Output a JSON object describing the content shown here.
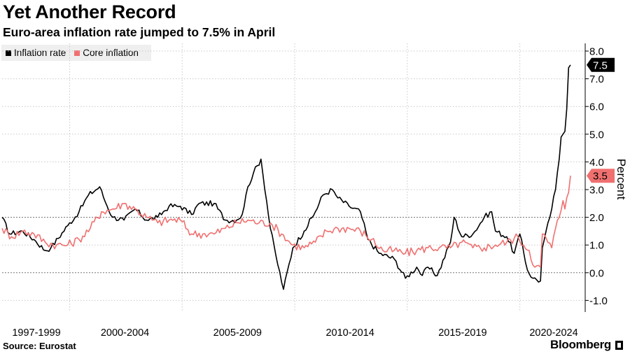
{
  "title": "Yet Another Record",
  "subtitle": "Euro-area inflation rate jumped to 7.5% in April",
  "source": "Source: Eurostat",
  "brand": "Bloomberg",
  "colors": {
    "inflation": "#000000",
    "core": "#f07070",
    "grid": "#c8c8c8",
    "legend_bg": "#efefef"
  },
  "chart_data": {
    "type": "line",
    "x_start": "1997-01",
    "x_step": "month",
    "xlim": [
      "1997-01",
      "2022-04"
    ],
    "x_tick_labels": [
      "1997-1999",
      "2000-2004",
      "2005-2009",
      "2010-2014",
      "2015-2019",
      "2020-2024"
    ],
    "ylabel": "Percent",
    "ylim": [
      -1.4,
      8.2
    ],
    "y_ticks": [
      -1.0,
      0.0,
      1.0,
      2.0,
      3.0,
      4.0,
      5.0,
      6.0,
      7.0,
      8.0
    ],
    "y_tick_labels": [
      "-1.0",
      "0.0",
      "1.0",
      "2.0",
      "3.0",
      "4.0",
      "5.0",
      "6.0",
      "7.0",
      "8.0"
    ],
    "grid": true,
    "legend": "top-left",
    "last_value_labels": [
      "7.5",
      "3.5"
    ],
    "series": [
      {
        "name": "Inflation rate",
        "key": "inflation",
        "anchors": [
          [
            "1997-01",
            2.0
          ],
          [
            "1997-05",
            1.4
          ],
          [
            "1997-12",
            1.5
          ],
          [
            "1998-06",
            1.2
          ],
          [
            "1998-12",
            0.8
          ],
          [
            "1999-03",
            0.9
          ],
          [
            "1999-12",
            1.7
          ],
          [
            "2000-06",
            2.2
          ],
          [
            "2000-11",
            2.8
          ],
          [
            "2001-05",
            3.1
          ],
          [
            "2001-09",
            2.4
          ],
          [
            "2001-12",
            2.0
          ],
          [
            "2002-06",
            1.9
          ],
          [
            "2002-12",
            2.3
          ],
          [
            "2003-06",
            1.9
          ],
          [
            "2003-12",
            2.0
          ],
          [
            "2004-06",
            2.4
          ],
          [
            "2004-12",
            2.4
          ],
          [
            "2005-06",
            2.1
          ],
          [
            "2005-10",
            2.5
          ],
          [
            "2006-06",
            2.5
          ],
          [
            "2006-12",
            1.9
          ],
          [
            "2007-06",
            1.9
          ],
          [
            "2007-09",
            2.1
          ],
          [
            "2007-12",
            3.1
          ],
          [
            "2008-03",
            3.6
          ],
          [
            "2008-07",
            4.1
          ],
          [
            "2008-12",
            1.6
          ],
          [
            "2009-03",
            0.6
          ],
          [
            "2009-07",
            -0.6
          ],
          [
            "2009-12",
            0.9
          ],
          [
            "2010-06",
            1.5
          ],
          [
            "2010-12",
            2.2
          ],
          [
            "2011-04",
            2.8
          ],
          [
            "2011-09",
            3.0
          ],
          [
            "2011-12",
            2.7
          ],
          [
            "2012-06",
            2.4
          ],
          [
            "2012-12",
            2.2
          ],
          [
            "2013-04",
            1.2
          ],
          [
            "2013-10",
            0.7
          ],
          [
            "2014-06",
            0.5
          ],
          [
            "2014-12",
            -0.2
          ],
          [
            "2015-06",
            0.2
          ],
          [
            "2015-09",
            -0.1
          ],
          [
            "2015-12",
            0.2
          ],
          [
            "2016-05",
            -0.1
          ],
          [
            "2016-12",
            1.1
          ],
          [
            "2017-02",
            2.0
          ],
          [
            "2017-06",
            1.3
          ],
          [
            "2017-12",
            1.4
          ],
          [
            "2018-06",
            2.0
          ],
          [
            "2018-10",
            2.2
          ],
          [
            "2018-12",
            1.5
          ],
          [
            "2019-06",
            1.3
          ],
          [
            "2019-10",
            0.7
          ],
          [
            "2020-01",
            1.4
          ],
          [
            "2020-05",
            0.1
          ],
          [
            "2020-08",
            -0.2
          ],
          [
            "2020-12",
            -0.3
          ],
          [
            "2021-01",
            0.9
          ],
          [
            "2021-05",
            2.0
          ],
          [
            "2021-08",
            3.0
          ],
          [
            "2021-10",
            4.1
          ],
          [
            "2021-11",
            4.9
          ],
          [
            "2021-12",
            5.0
          ],
          [
            "2022-01",
            5.1
          ],
          [
            "2022-02",
            5.9
          ],
          [
            "2022-03",
            7.4
          ],
          [
            "2022-04",
            7.5
          ]
        ]
      },
      {
        "name": "Core inflation",
        "key": "core",
        "anchors": [
          [
            "1997-01",
            1.6
          ],
          [
            "1997-06",
            1.3
          ],
          [
            "1997-12",
            1.5
          ],
          [
            "1998-06",
            1.4
          ],
          [
            "1998-12",
            1.1
          ],
          [
            "1999-06",
            1.0
          ],
          [
            "1999-12",
            1.0
          ],
          [
            "2000-06",
            1.2
          ],
          [
            "2000-12",
            1.6
          ],
          [
            "2001-06",
            2.2
          ],
          [
            "2001-12",
            2.3
          ],
          [
            "2002-06",
            2.5
          ],
          [
            "2002-12",
            2.3
          ],
          [
            "2003-06",
            2.0
          ],
          [
            "2003-12",
            1.8
          ],
          [
            "2004-06",
            1.9
          ],
          [
            "2004-12",
            1.9
          ],
          [
            "2005-06",
            1.4
          ],
          [
            "2005-12",
            1.4
          ],
          [
            "2006-06",
            1.4
          ],
          [
            "2006-12",
            1.6
          ],
          [
            "2007-06",
            1.8
          ],
          [
            "2007-12",
            1.9
          ],
          [
            "2008-06",
            1.8
          ],
          [
            "2008-12",
            1.8
          ],
          [
            "2009-06",
            1.4
          ],
          [
            "2009-12",
            1.0
          ],
          [
            "2010-06",
            0.9
          ],
          [
            "2010-12",
            1.1
          ],
          [
            "2011-06",
            1.5
          ],
          [
            "2011-12",
            1.6
          ],
          [
            "2012-06",
            1.6
          ],
          [
            "2012-12",
            1.5
          ],
          [
            "2013-06",
            1.2
          ],
          [
            "2013-12",
            0.8
          ],
          [
            "2014-06",
            0.8
          ],
          [
            "2014-12",
            0.7
          ],
          [
            "2015-06",
            0.8
          ],
          [
            "2015-12",
            0.9
          ],
          [
            "2016-06",
            0.9
          ],
          [
            "2016-12",
            0.9
          ],
          [
            "2017-06",
            1.1
          ],
          [
            "2017-12",
            0.9
          ],
          [
            "2018-06",
            0.9
          ],
          [
            "2018-12",
            1.0
          ],
          [
            "2019-06",
            1.1
          ],
          [
            "2019-12",
            1.3
          ],
          [
            "2020-03",
            1.0
          ],
          [
            "2020-06",
            0.8
          ],
          [
            "2020-09",
            0.2
          ],
          [
            "2020-12",
            0.2
          ],
          [
            "2021-01",
            1.4
          ],
          [
            "2021-06",
            0.9
          ],
          [
            "2021-08",
            1.6
          ],
          [
            "2021-10",
            2.0
          ],
          [
            "2021-12",
            2.6
          ],
          [
            "2022-01",
            2.3
          ],
          [
            "2022-02",
            2.7
          ],
          [
            "2022-03",
            2.9
          ],
          [
            "2022-04",
            3.5
          ]
        ]
      }
    ]
  }
}
